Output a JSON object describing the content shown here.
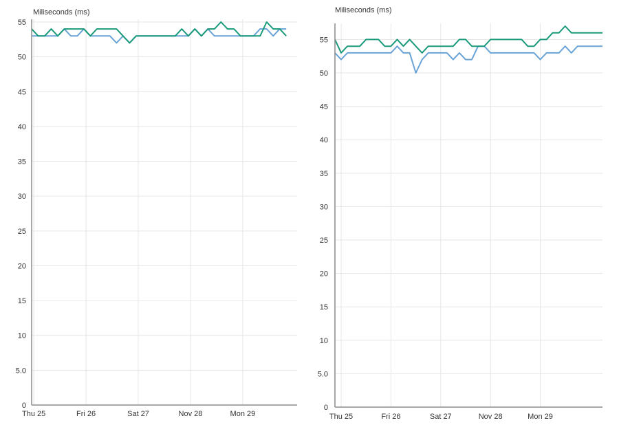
{
  "chart_data": [
    {
      "type": "line",
      "ylabel": "Miliseconds (ms)",
      "ylim": [
        0,
        55
      ],
      "yticks": [
        0,
        5,
        10,
        15,
        20,
        25,
        30,
        35,
        40,
        45,
        50,
        55
      ],
      "ytick_labels": [
        "0",
        "5.0",
        "10",
        "15",
        "20",
        "25",
        "30",
        "35",
        "40",
        "45",
        "50",
        "55"
      ],
      "xlim": [
        "2021-11-24T23:00",
        "2021-11-30T01:00"
      ],
      "xticks": [
        {
          "label": "Thu 25",
          "date": "2021-11-25T00:00"
        },
        {
          "label": "Fri 26",
          "date": "2021-11-26T00:00"
        },
        {
          "label": "Sat 27",
          "date": "2021-11-27T00:00"
        },
        {
          "label": "Nov 28",
          "date": "2021-11-28T00:00"
        },
        {
          "label": "Mon 29",
          "date": "2021-11-29T00:00"
        }
      ],
      "grid": true,
      "series": [
        {
          "color": "#6aa3d5",
          "x": [
            "2021-11-24T23:00",
            "2021-11-25T02:00",
            "2021-11-25T05:00",
            "2021-11-25T08:00",
            "2021-11-25T11:00",
            "2021-11-25T14:00",
            "2021-11-25T17:00",
            "2021-11-25T20:00",
            "2021-11-25T23:00",
            "2021-11-26T02:00",
            "2021-11-26T05:00",
            "2021-11-26T08:00",
            "2021-11-26T11:00",
            "2021-11-26T14:00",
            "2021-11-26T17:00",
            "2021-11-26T20:00",
            "2021-11-26T23:00",
            "2021-11-27T02:00",
            "2021-11-27T05:00",
            "2021-11-27T08:00",
            "2021-11-27T11:00",
            "2021-11-27T14:00",
            "2021-11-27T17:00",
            "2021-11-27T20:00",
            "2021-11-27T23:00",
            "2021-11-28T02:00",
            "2021-11-28T05:00",
            "2021-11-28T08:00",
            "2021-11-28T11:00",
            "2021-11-28T14:00",
            "2021-11-28T17:00",
            "2021-11-28T20:00",
            "2021-11-28T23:00",
            "2021-11-29T02:00",
            "2021-11-29T05:00",
            "2021-11-29T08:00",
            "2021-11-29T11:00",
            "2021-11-29T14:00",
            "2021-11-29T17:00",
            "2021-11-29T20:00"
          ],
          "y": [
            53,
            53,
            53,
            53,
            53,
            54,
            53,
            53,
            54,
            53,
            53,
            53,
            53,
            52,
            53,
            52,
            53,
            53,
            53,
            53,
            53,
            53,
            53,
            53,
            53,
            54,
            53,
            54,
            53,
            53,
            53,
            53,
            53,
            53,
            53,
            54,
            54,
            53,
            54,
            54
          ]
        },
        {
          "color": "#1a9a7a",
          "x": [
            "2021-11-24T23:00",
            "2021-11-25T02:00",
            "2021-11-25T05:00",
            "2021-11-25T08:00",
            "2021-11-25T11:00",
            "2021-11-25T14:00",
            "2021-11-25T17:00",
            "2021-11-25T20:00",
            "2021-11-25T23:00",
            "2021-11-26T02:00",
            "2021-11-26T05:00",
            "2021-11-26T08:00",
            "2021-11-26T11:00",
            "2021-11-26T14:00",
            "2021-11-26T17:00",
            "2021-11-26T20:00",
            "2021-11-26T23:00",
            "2021-11-27T02:00",
            "2021-11-27T05:00",
            "2021-11-27T08:00",
            "2021-11-27T11:00",
            "2021-11-27T14:00",
            "2021-11-27T17:00",
            "2021-11-27T20:00",
            "2021-11-27T23:00",
            "2021-11-28T02:00",
            "2021-11-28T05:00",
            "2021-11-28T08:00",
            "2021-11-28T11:00",
            "2021-11-28T14:00",
            "2021-11-28T17:00",
            "2021-11-28T20:00",
            "2021-11-28T23:00",
            "2021-11-29T02:00",
            "2021-11-29T05:00",
            "2021-11-29T08:00",
            "2021-11-29T11:00",
            "2021-11-29T14:00",
            "2021-11-29T17:00",
            "2021-11-29T20:00"
          ],
          "y": [
            54,
            53,
            53,
            54,
            53,
            54,
            54,
            54,
            54,
            53,
            54,
            54,
            54,
            54,
            53,
            52,
            53,
            53,
            53,
            53,
            53,
            53,
            53,
            54,
            53,
            54,
            53,
            54,
            54,
            55,
            54,
            54,
            53,
            53,
            53,
            53,
            55,
            54,
            54,
            53
          ]
        }
      ]
    },
    {
      "type": "line",
      "ylabel": "Miliseconds (ms)",
      "ylim": [
        0,
        57
      ],
      "yticks": [
        0,
        5,
        10,
        15,
        20,
        25,
        30,
        35,
        40,
        45,
        50,
        55
      ],
      "ytick_labels": [
        "0",
        "5.0",
        "10",
        "15",
        "20",
        "25",
        "30",
        "35",
        "40",
        "45",
        "50",
        "55"
      ],
      "xlim": [
        "2021-11-24T21:00",
        "2021-11-30T06:00"
      ],
      "xticks": [
        {
          "label": "Thu 25",
          "date": "2021-11-25T00:00"
        },
        {
          "label": "Fri 26",
          "date": "2021-11-26T00:00"
        },
        {
          "label": "Sat 27",
          "date": "2021-11-27T00:00"
        },
        {
          "label": "Nov 28",
          "date": "2021-11-28T00:00"
        },
        {
          "label": "Mon 29",
          "date": "2021-11-29T00:00"
        }
      ],
      "grid": true,
      "series": [
        {
          "color": "#6aa3d5",
          "x": [
            "2021-11-24T21:00",
            "2021-11-25T00:00",
            "2021-11-25T03:00",
            "2021-11-25T06:00",
            "2021-11-25T09:00",
            "2021-11-25T12:00",
            "2021-11-25T15:00",
            "2021-11-25T18:00",
            "2021-11-25T21:00",
            "2021-11-26T00:00",
            "2021-11-26T03:00",
            "2021-11-26T06:00",
            "2021-11-26T09:00",
            "2021-11-26T12:00",
            "2021-11-26T15:00",
            "2021-11-26T18:00",
            "2021-11-26T21:00",
            "2021-11-27T00:00",
            "2021-11-27T03:00",
            "2021-11-27T06:00",
            "2021-11-27T09:00",
            "2021-11-27T12:00",
            "2021-11-27T15:00",
            "2021-11-27T18:00",
            "2021-11-27T21:00",
            "2021-11-28T00:00",
            "2021-11-28T03:00",
            "2021-11-28T06:00",
            "2021-11-28T09:00",
            "2021-11-28T12:00",
            "2021-11-28T15:00",
            "2021-11-28T18:00",
            "2021-11-28T21:00",
            "2021-11-29T00:00",
            "2021-11-29T03:00",
            "2021-11-29T06:00",
            "2021-11-29T09:00",
            "2021-11-29T12:00",
            "2021-11-29T15:00",
            "2021-11-29T18:00",
            "2021-11-29T21:00",
            "2021-11-30T00:00",
            "2021-11-30T03:00",
            "2021-11-30T06:00"
          ],
          "y": [
            53,
            52,
            53,
            53,
            53,
            53,
            53,
            53,
            53,
            53,
            54,
            53,
            53,
            50,
            52,
            53,
            53,
            53,
            53,
            52,
            53,
            52,
            52,
            54,
            54,
            53,
            53,
            53,
            53,
            53,
            53,
            53,
            53,
            52,
            53,
            53,
            53,
            54,
            53,
            54,
            54,
            54,
            54,
            54
          ]
        },
        {
          "color": "#1a9a7a",
          "x": [
            "2021-11-24T21:00",
            "2021-11-25T00:00",
            "2021-11-25T03:00",
            "2021-11-25T06:00",
            "2021-11-25T09:00",
            "2021-11-25T12:00",
            "2021-11-25T15:00",
            "2021-11-25T18:00",
            "2021-11-25T21:00",
            "2021-11-26T00:00",
            "2021-11-26T03:00",
            "2021-11-26T06:00",
            "2021-11-26T09:00",
            "2021-11-26T12:00",
            "2021-11-26T15:00",
            "2021-11-26T18:00",
            "2021-11-26T21:00",
            "2021-11-27T00:00",
            "2021-11-27T03:00",
            "2021-11-27T06:00",
            "2021-11-27T09:00",
            "2021-11-27T12:00",
            "2021-11-27T15:00",
            "2021-11-27T18:00",
            "2021-11-27T21:00",
            "2021-11-28T00:00",
            "2021-11-28T03:00",
            "2021-11-28T06:00",
            "2021-11-28T09:00",
            "2021-11-28T12:00",
            "2021-11-28T15:00",
            "2021-11-28T18:00",
            "2021-11-28T21:00",
            "2021-11-29T00:00",
            "2021-11-29T03:00",
            "2021-11-29T06:00",
            "2021-11-29T09:00",
            "2021-11-29T12:00",
            "2021-11-29T15:00",
            "2021-11-29T18:00",
            "2021-11-29T21:00",
            "2021-11-30T00:00",
            "2021-11-30T03:00",
            "2021-11-30T06:00"
          ],
          "y": [
            55,
            53,
            54,
            54,
            54,
            55,
            55,
            55,
            54,
            54,
            55,
            54,
            55,
            54,
            53,
            54,
            54,
            54,
            54,
            54,
            55,
            55,
            54,
            54,
            54,
            55,
            55,
            55,
            55,
            55,
            55,
            54,
            54,
            55,
            55,
            56,
            56,
            57,
            56,
            56,
            56,
            56,
            56,
            56
          ]
        }
      ]
    }
  ]
}
